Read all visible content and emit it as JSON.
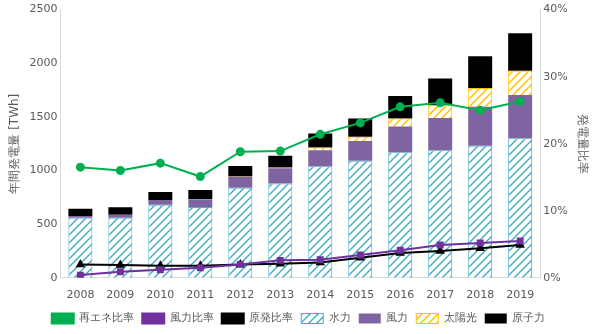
{
  "chart_data": {
    "type": "bar",
    "stacked": true,
    "grid": false,
    "legend": "bottom",
    "y_label": "年間発電量 [TWh]",
    "y2_label": "発電量比率",
    "categories": [
      "2008",
      "2009",
      "2010",
      "2011",
      "2012",
      "2013",
      "2014",
      "2015",
      "2016",
      "2017",
      "2018",
      "2019"
    ],
    "ylim": [
      0,
      2500
    ],
    "yticks": [
      0,
      500,
      1000,
      1500,
      2000,
      2500
    ],
    "y2lim": [
      0,
      40
    ],
    "y2ticks": [
      {
        "value": 0,
        "label": "0%"
      },
      {
        "value": 10,
        "label": "10%"
      },
      {
        "value": 20,
        "label": "20%"
      },
      {
        "value": 30,
        "label": "30%"
      },
      {
        "value": 40,
        "label": "40%"
      }
    ],
    "series": [
      {
        "name": "水力",
        "type": "bar",
        "color": "#4bacc6",
        "marker": "hatch",
        "values": [
          560,
          560,
          680,
          660,
          840,
          880,
          1040,
          1090,
          1170,
          1190,
          1230,
          1300
        ]
      },
      {
        "name": "風力",
        "type": "bar",
        "color": "#8064a2",
        "values": [
          15,
          27,
          45,
          70,
          100,
          140,
          150,
          185,
          240,
          300,
          365,
          405
        ]
      },
      {
        "name": "太陽光",
        "type": "bar",
        "color": "#ffc000",
        "marker": "hatch",
        "values": [
          0,
          0,
          1,
          3,
          4,
          8,
          25,
          40,
          75,
          120,
          175,
          225
        ]
      },
      {
        "name": "原子力",
        "type": "bar",
        "color": "#000000",
        "values": [
          68,
          70,
          74,
          86,
          98,
          110,
          130,
          170,
          210,
          248,
          295,
          350
        ]
      },
      {
        "name": "再エネ比率",
        "type": "line",
        "axis": "y2",
        "color": "#00b050",
        "marker": "circle",
        "values": [
          16.5,
          16.0,
          17.1,
          15.1,
          18.8,
          18.9,
          21.4,
          23.1,
          25.5,
          26.1,
          25.0,
          26.3
        ]
      },
      {
        "name": "風力比率",
        "type": "line",
        "axis": "y2",
        "color": "#7030a0",
        "marker": "rect",
        "values": [
          0.4,
          0.9,
          1.2,
          1.5,
          2.0,
          2.6,
          2.7,
          3.4,
          4.1,
          4.9,
          5.2,
          5.5
        ]
      },
      {
        "name": "原発比率",
        "type": "line",
        "axis": "y2",
        "color": "#000000",
        "marker": "triangle",
        "values": [
          2.0,
          1.9,
          1.8,
          1.8,
          2.0,
          2.1,
          2.3,
          3.0,
          3.7,
          4.0,
          4.4,
          4.9
        ]
      }
    ]
  }
}
